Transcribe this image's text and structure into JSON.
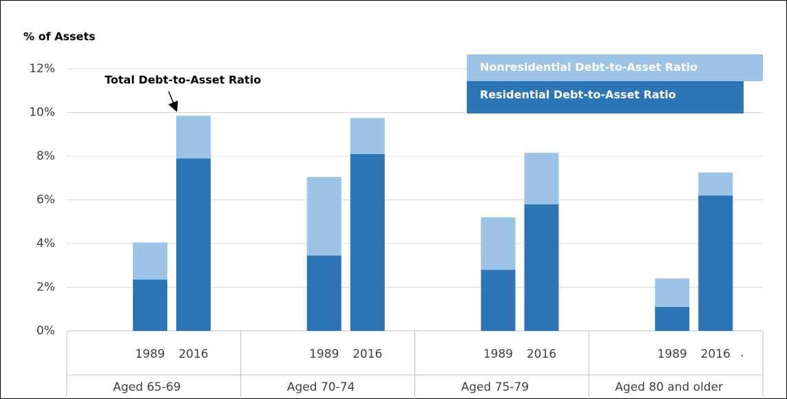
{
  "chart_data": {
    "type": "stacked_bar",
    "y_axis_title": "% of Assets",
    "categories": [
      "1989",
      "2016",
      "1989",
      "2016",
      "1989",
      "2016",
      "1989",
      "2016"
    ],
    "groups": [
      "Aged 65-69",
      "Aged 70-74",
      "Aged 75-79",
      "Aged 80 and older"
    ],
    "series": [
      {
        "name": "Residential Debt-to-Asset Ratio",
        "color": "#2e75b6",
        "values": [
          2.35,
          7.9,
          3.45,
          8.1,
          2.8,
          5.8,
          1.1,
          6.2
        ]
      },
      {
        "name": "Nonresidential Debt-to-Asset Ratio",
        "color": "#9dc3e6",
        "values": [
          1.7,
          1.95,
          3.6,
          1.65,
          2.4,
          2.35,
          1.3,
          1.05
        ]
      }
    ],
    "ylim": [
      0,
      12
    ],
    "yticks": [
      {
        "value": 0,
        "label": "0%"
      },
      {
        "value": 2,
        "label": "2%"
      },
      {
        "value": 4,
        "label": "4%"
      },
      {
        "value": 6,
        "label": "6%"
      },
      {
        "value": 8,
        "label": "8%"
      },
      {
        "value": 10,
        "label": "10%"
      },
      {
        "value": 12,
        "label": "12%"
      }
    ],
    "grid": true,
    "annotations": [
      {
        "text": "Total Debt-to-Asset Ratio"
      },
      {
        "text": "."
      }
    ]
  }
}
